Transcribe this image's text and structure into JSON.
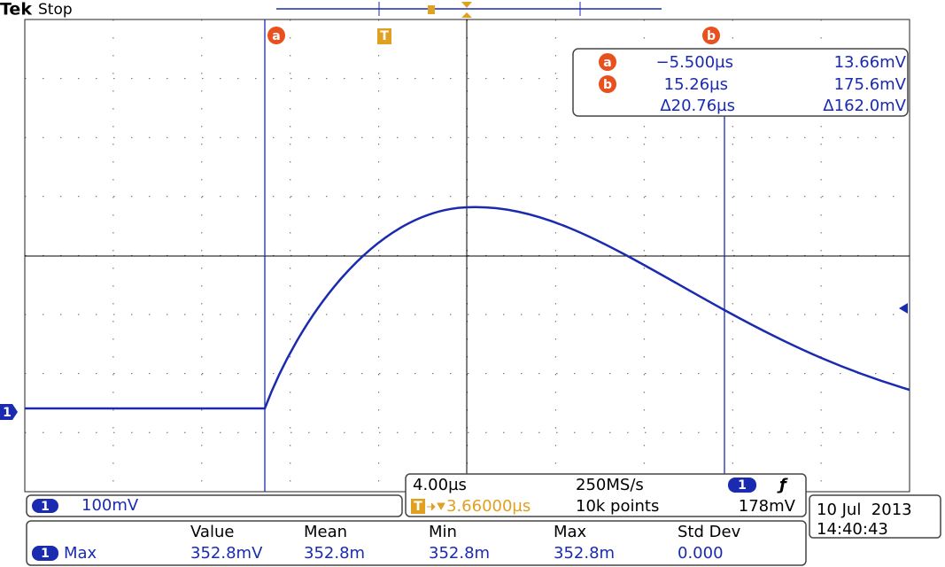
{
  "header": {
    "brand": "Tek",
    "status": "Stop"
  },
  "markers": {
    "cursor_a": "a",
    "trigger": "T",
    "cursor_b": "b"
  },
  "ground_marker": "1",
  "cursor_readout": {
    "rows": [
      {
        "label": "a",
        "time": "−5.500µs",
        "voltage": "13.66mV"
      },
      {
        "label": "b",
        "time": "15.26µs",
        "voltage": "175.6mV"
      },
      {
        "time": "Δ20.76µs",
        "voltage": "Δ162.0mV"
      }
    ]
  },
  "channel": {
    "number": "1",
    "scale": "100mV"
  },
  "timebase": {
    "scale": "4.00µs",
    "sample_rate": "250MS/s",
    "trigger_channel": "1",
    "trigger_slope": "ƒ",
    "trigger_level": "178mV",
    "trigger_icon": "T",
    "position": "3.66000µs",
    "record_length": "10k points"
  },
  "datetime": {
    "date": "10 Jul  2013",
    "time": "14:40:43"
  },
  "measurements": {
    "headers": [
      "Value",
      "Mean",
      "Min",
      "Max",
      "Std Dev"
    ],
    "rows": [
      {
        "channel": "1",
        "name": "Max",
        "values": [
          "352.8mV",
          "352.8m",
          "352.8m",
          "352.8m",
          "0.000"
        ]
      }
    ]
  }
}
